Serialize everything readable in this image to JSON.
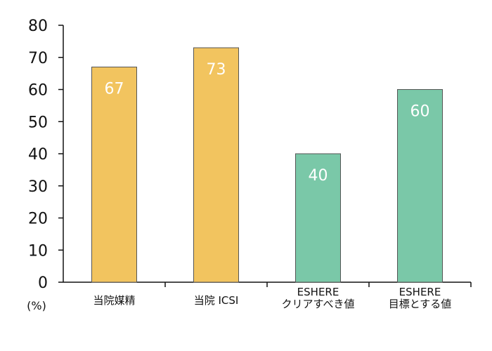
{
  "chart_data": {
    "type": "bar",
    "title": "",
    "xlabel": "",
    "ylabel": "",
    "y_unit": "(%)",
    "ylim": [
      0,
      80
    ],
    "yticks": [
      0,
      10,
      20,
      30,
      40,
      50,
      60,
      70,
      80
    ],
    "grid": false,
    "categories": [
      [
        "当院媒精"
      ],
      [
        "当院 ICSI"
      ],
      [
        "ESHERE",
        "クリアすべき値"
      ],
      [
        "ESHERE",
        "目標とする値"
      ]
    ],
    "values": [
      67,
      73,
      40,
      60
    ],
    "data_labels": [
      "67",
      "73",
      "40",
      "60"
    ],
    "bar_colors": [
      "#f2c45f",
      "#f2c45f",
      "#7ac8a8",
      "#7ac8a8"
    ],
    "bar_stroke": "#555555",
    "axis_color": "#111111",
    "data_label_color": "#ffffff"
  }
}
